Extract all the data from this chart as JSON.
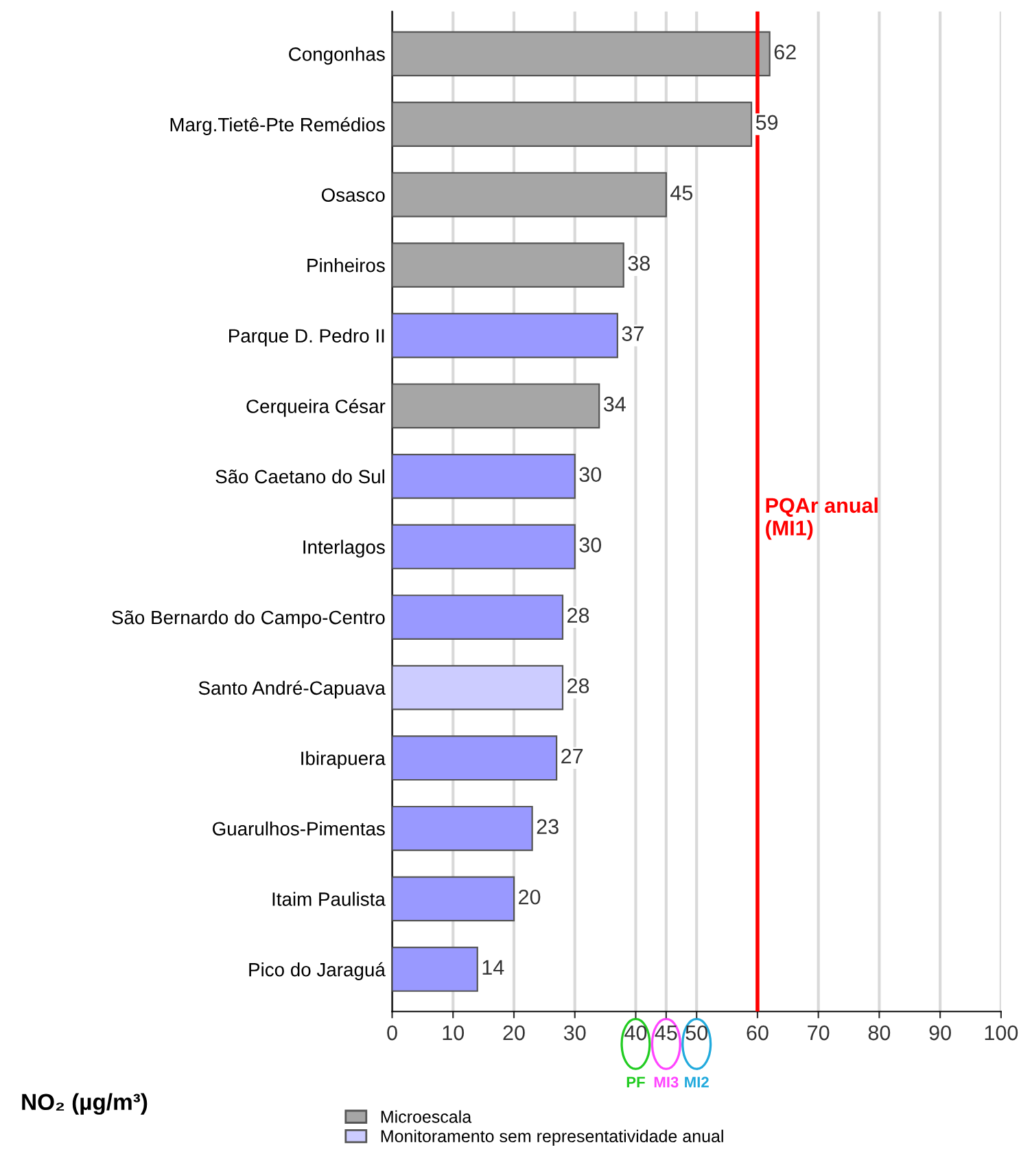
{
  "chart_data": {
    "type": "bar",
    "orientation": "horizontal",
    "xlabel": "NO₂ (µg/m³)",
    "categories": [
      "Congonhas",
      "Marg.Tietê-Pte Remédios",
      "Osasco",
      "Pinheiros",
      "Parque D. Pedro II",
      "Cerqueira César",
      "São Caetano do Sul",
      "Interlagos",
      "São Bernardo do Campo-Centro",
      "Santo André-Capuava",
      "Ibirapuera",
      "Guarulhos-Pimentas",
      "Itaim Paulista",
      "Pico do Jaraguá"
    ],
    "series": [
      {
        "name": "Microescala",
        "color": "#a6a6a6",
        "values": [
          62,
          59,
          45,
          38,
          null,
          34,
          null,
          null,
          null,
          null,
          null,
          null,
          null,
          null
        ]
      },
      {
        "name": "Monitoramento sem representatividade anual",
        "color": "#ccccff",
        "values": [
          null,
          null,
          null,
          null,
          null,
          null,
          null,
          null,
          null,
          28,
          null,
          null,
          null,
          null
        ]
      },
      {
        "color": "#9999ff",
        "values": [
          null,
          null,
          null,
          null,
          37,
          null,
          30,
          30,
          28,
          null,
          27,
          23,
          20,
          14
        ]
      }
    ],
    "data_labels": true,
    "xlim": [
      0,
      100
    ],
    "xticks": [
      0,
      10,
      20,
      30,
      40,
      45,
      50,
      60,
      70,
      80,
      90,
      100
    ],
    "grid": "x",
    "legend": "bottom left",
    "ref_lines": [
      {
        "axis": "x",
        "value": 60,
        "label": "PQAr anual\n(MI1)",
        "color": "#ff0000"
      }
    ],
    "annotations": [
      "PF",
      "MI3",
      "MI2"
    ]
  }
}
